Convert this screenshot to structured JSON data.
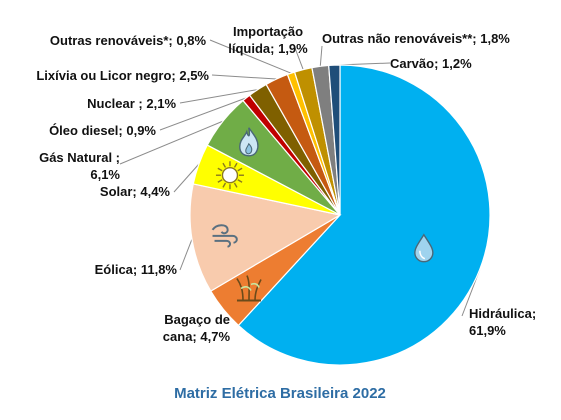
{
  "chart_data": {
    "type": "pie",
    "title": "Matriz Elétrica Brasileira 2022",
    "title_color": "#2e6da4",
    "legend": "none",
    "slices": [
      {
        "label": "Hidráulica",
        "value": 61.9,
        "text": [
          "Hidráulica;",
          "61,9%"
        ],
        "color": "#00b0f0",
        "icon": "water-drop-icon"
      },
      {
        "label": "Bagaço de cana",
        "value": 4.7,
        "text": [
          "Bagaço de",
          "cana; 4,7%"
        ],
        "color": "#ed7d31",
        "icon": "sugarcane-icon"
      },
      {
        "label": "Eólica",
        "value": 11.8,
        "text": [
          "Eólica; 11,8%"
        ],
        "color": "#f8cbad",
        "icon": "wind-icon"
      },
      {
        "label": "Solar",
        "value": 4.4,
        "text": [
          "Solar; 4,4%"
        ],
        "color": "#ffff00",
        "icon": "sun-icon"
      },
      {
        "label": "Gás Natural",
        "value": 6.1,
        "text": [
          "Gás Natural ;",
          "6,1%"
        ],
        "color": "#70ad47",
        "icon": "gas-flame-icon"
      },
      {
        "label": "Óleo diesel",
        "value": 0.9,
        "text": [
          "Óleo diesel; 0,9%"
        ],
        "color": "#c00000",
        "icon": ""
      },
      {
        "label": "Nuclear",
        "value": 2.1,
        "text": [
          "Nuclear ; 2,1%"
        ],
        "color": "#7f6000",
        "icon": ""
      },
      {
        "label": "Lixívia ou Licor negro",
        "value": 2.5,
        "text": [
          "Lixívia ou Licor negro; 2,5%"
        ],
        "color": "#c55a11",
        "icon": ""
      },
      {
        "label": "Outras renováveis*",
        "value": 0.8,
        "text": [
          "Outras renováveis*; 0,8%"
        ],
        "color": "#ffc000",
        "icon": ""
      },
      {
        "label": "Importação líquida",
        "value": 1.9,
        "text": [
          "Importação",
          "líquida; 1,9%"
        ],
        "color": "#bf9000",
        "icon": ""
      },
      {
        "label": "Outras não renováveis**",
        "value": 1.8,
        "text": [
          "Outras não renováveis**; 1,8%"
        ],
        "color": "#7f7f7f",
        "icon": ""
      },
      {
        "label": "Carvão",
        "value": 1.2,
        "text": [
          "Carvão; 1,2%"
        ],
        "color": "#1f4e79",
        "icon": ""
      }
    ]
  }
}
